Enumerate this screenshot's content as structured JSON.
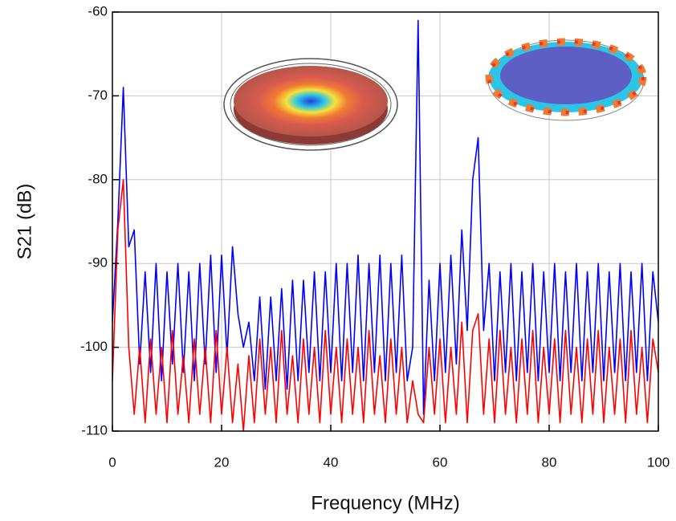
{
  "chart_data": {
    "type": "line",
    "x_label": "Frequency (MHz)",
    "y_label": "S21 (dB)",
    "xlim": [
      0,
      100
    ],
    "ylim": [
      -110,
      -60
    ],
    "xticks": [
      0,
      20,
      40,
      60,
      80,
      100
    ],
    "yticks": [
      -60,
      -70,
      -80,
      -90,
      -100,
      -110
    ],
    "grid": true,
    "x": [
      0,
      1,
      2,
      3,
      4,
      5,
      6,
      7,
      8,
      9,
      10,
      11,
      12,
      13,
      14,
      15,
      16,
      17,
      18,
      19,
      20,
      21,
      22,
      23,
      24,
      25,
      26,
      27,
      28,
      29,
      30,
      31,
      32,
      33,
      34,
      35,
      36,
      37,
      38,
      39,
      40,
      41,
      42,
      43,
      44,
      45,
      46,
      47,
      48,
      49,
      50,
      51,
      52,
      53,
      54,
      55,
      56,
      57,
      58,
      59,
      60,
      61,
      62,
      63,
      64,
      65,
      66,
      67,
      68,
      69,
      70,
      71,
      72,
      73,
      74,
      75,
      76,
      77,
      78,
      79,
      80,
      81,
      82,
      83,
      84,
      85,
      86,
      87,
      88,
      89,
      90,
      91,
      92,
      93,
      94,
      95,
      96,
      97,
      98,
      99,
      100
    ],
    "series": [
      {
        "color": "#0000ff",
        "values": [
          -97,
          -85,
          -69,
          -88,
          -86,
          -102,
          -91,
          -103,
          -90,
          -104,
          -91,
          -102,
          -90,
          -103,
          -91,
          -104,
          -90,
          -102,
          -89,
          -103,
          -89,
          -101,
          -88,
          -96,
          -100,
          -97,
          -104,
          -94,
          -105,
          -94,
          -104,
          -93,
          -105,
          -92,
          -104,
          -92,
          -103,
          -91,
          -104,
          -91,
          -103,
          -90,
          -104,
          -90,
          -103,
          -89,
          -104,
          -90,
          -103,
          -89,
          -104,
          -90,
          -103,
          -89,
          -104,
          -100,
          -61,
          -108,
          -92,
          -104,
          -90,
          -103,
          -89,
          -102,
          -86,
          -98,
          -80,
          -75,
          -98,
          -90,
          -104,
          -91,
          -103,
          -90,
          -104,
          -91,
          -103,
          -90,
          -104,
          -91,
          -103,
          -90,
          -104,
          -91,
          -103,
          -90,
          -104,
          -91,
          -103,
          -90,
          -104,
          -91,
          -103,
          -90,
          -104,
          -91,
          -103,
          -90,
          -104,
          -91,
          -97
        ]
      },
      {
        "color": "#ff0000",
        "values": [
          -104,
          -86,
          -80,
          -100,
          -108,
          -100,
          -109,
          -99,
          -108,
          -100,
          -109,
          -98,
          -108,
          -101,
          -109,
          -99,
          -108,
          -100,
          -109,
          -98,
          -108,
          -100,
          -109,
          -102,
          -110,
          -101,
          -109,
          -99,
          -108,
          -100,
          -109,
          -98,
          -108,
          -101,
          -109,
          -99,
          -108,
          -100,
          -109,
          -98,
          -108,
          -100,
          -109,
          -99,
          -108,
          -100,
          -109,
          -98,
          -108,
          -101,
          -109,
          -99,
          -108,
          -100,
          -109,
          -104,
          -108,
          -109,
          -100,
          -108,
          -99,
          -109,
          -100,
          -108,
          -97,
          -109,
          -98,
          -96,
          -108,
          -99,
          -109,
          -98,
          -108,
          -100,
          -109,
          -99,
          -108,
          -98,
          -109,
          -100,
          -108,
          -99,
          -109,
          -98,
          -108,
          -100,
          -109,
          -99,
          -108,
          -98,
          -109,
          -100,
          -108,
          -99,
          -109,
          -98,
          -108,
          -100,
          -109,
          -99,
          -103
        ]
      }
    ]
  }
}
